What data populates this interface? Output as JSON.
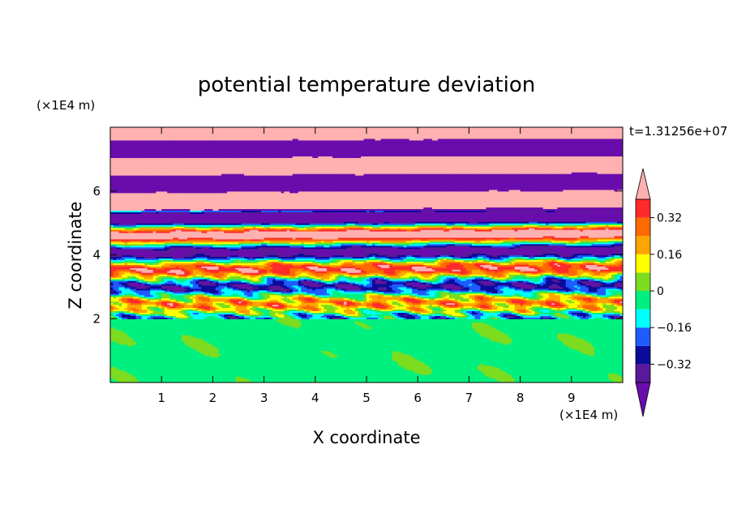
{
  "chart_data": {
    "type": "heatmap",
    "title": "potential temperature deviation",
    "xlabel": "X coordinate",
    "ylabel": "Z coordinate",
    "x_unit": "(×1E4 m)",
    "y_unit": "(×1E4 m)",
    "time_label": "t=1.31256e+07",
    "xlim": [
      0,
      10
    ],
    "ylim": [
      0,
      8
    ],
    "x_ticks": [
      "1",
      "2",
      "3",
      "4",
      "5",
      "6",
      "7",
      "8",
      "9"
    ],
    "y_ticks": [
      "2",
      "4",
      "6"
    ],
    "x_tick_values": [
      1,
      2,
      3,
      4,
      5,
      6,
      7,
      8,
      9
    ],
    "y_tick_values": [
      2,
      4,
      6
    ],
    "colorbar": {
      "levels": [
        -0.48,
        -0.4,
        -0.32,
        -0.24,
        -0.16,
        -0.08,
        0,
        0.08,
        0.16,
        0.24,
        0.32,
        0.4,
        0.48
      ],
      "tick_labels": [
        "0.32",
        "0.16",
        "0",
        "−0.16",
        "−0.32"
      ],
      "tick_values": [
        0.32,
        0.16,
        0,
        -0.16,
        -0.32
      ],
      "colors": [
        "#6a0dad",
        "#5a189a",
        "#0b0b9a",
        "#1f5bff",
        "#00ffff",
        "#00f080",
        "#7ddc1f",
        "#ffff00",
        "#ffa500",
        "#ff6a00",
        "#ff2a2a",
        "#ffb0b0"
      ],
      "extend": "both"
    },
    "grid": false
  }
}
